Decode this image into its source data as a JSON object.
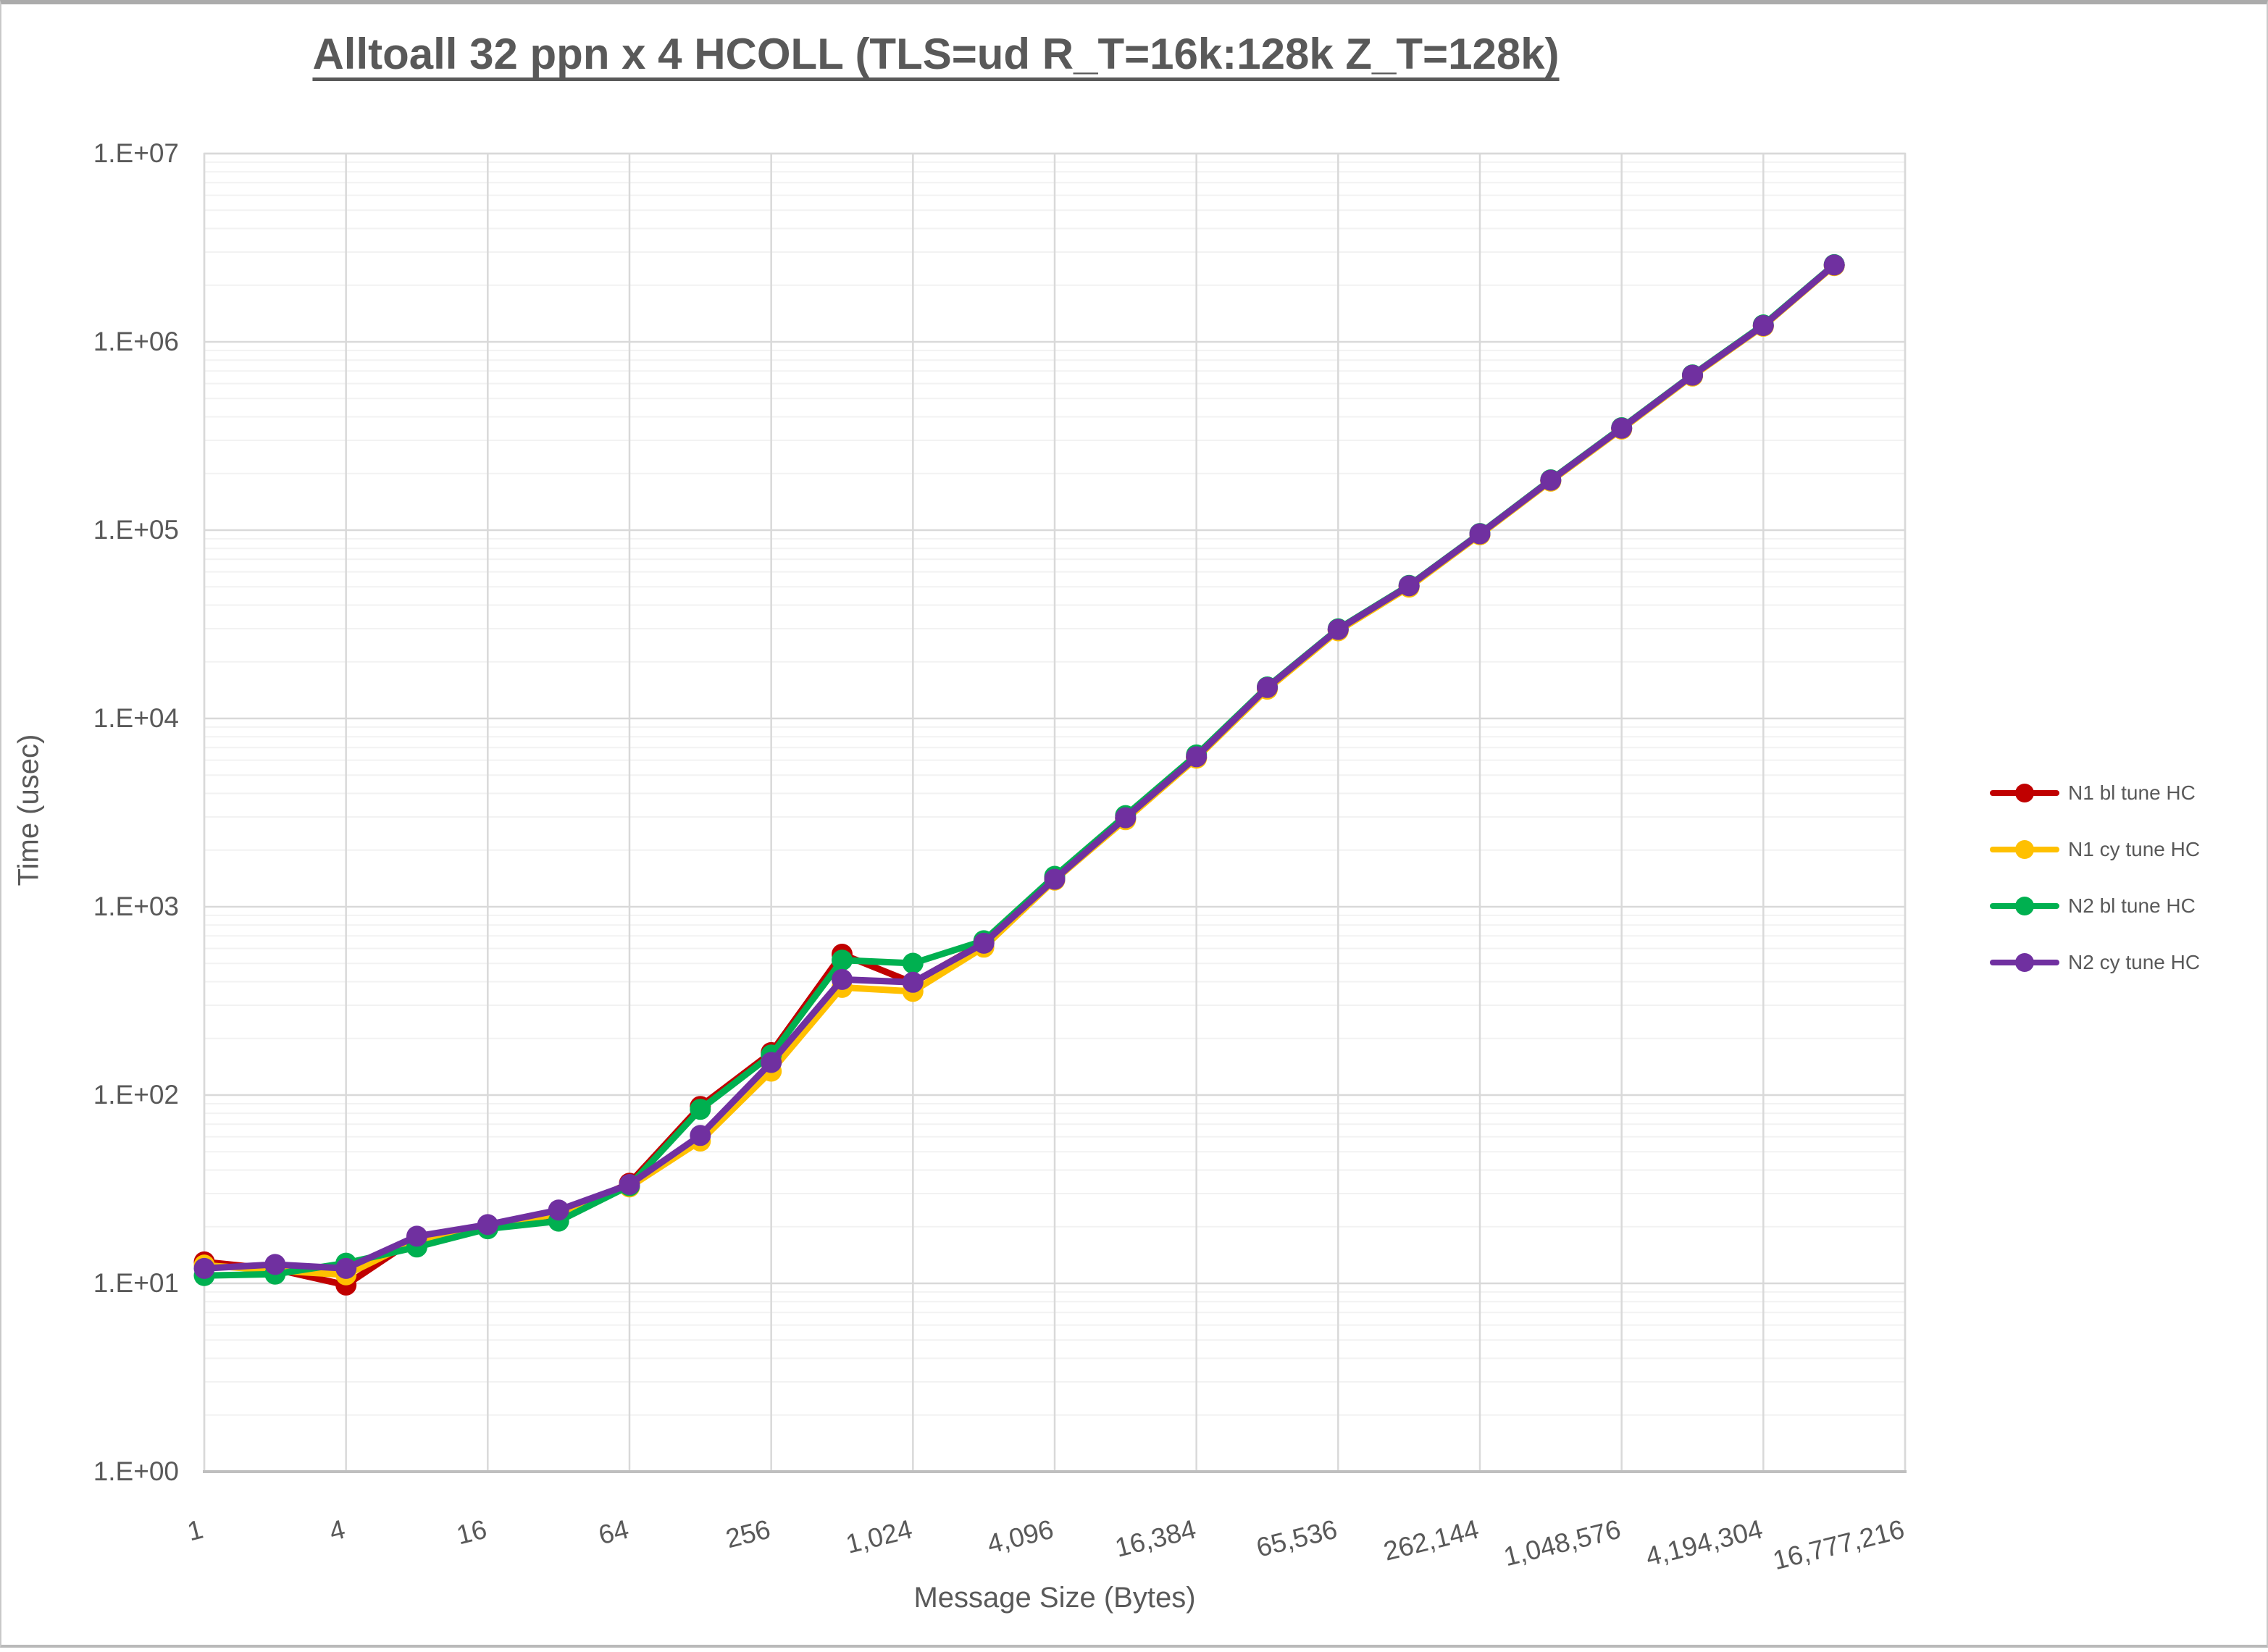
{
  "chart": {
    "title": "Alltoall 32 ppn x 4 HCOLL (TLS=ud R_T=16k:128k Z_T=128k)",
    "x_axis_title": "Message Size (Bytes)",
    "y_axis_title": "Time (usec)"
  },
  "chart_data": {
    "type": "line",
    "title": "Alltoall 32 ppn x 4 HCOLL (TLS=ud R_T=16k:128k Z_T=128k)",
    "xlabel": "Message Size (Bytes)",
    "ylabel": "Time (usec)",
    "x_scale": "log2",
    "y_scale": "log10",
    "xlim": [
      1,
      16777216
    ],
    "ylim": [
      1,
      10000000
    ],
    "grid": "major-and-minor",
    "legend_position": "right",
    "x_tick_labels": [
      "1",
      "4",
      "16",
      "64",
      "256",
      "1,024",
      "4,096",
      "16,384",
      "65,536",
      "262,144",
      "1,048,576",
      "4,194,304",
      "16,777,216"
    ],
    "y_tick_labels": [
      "1.E+00",
      "1.E+01",
      "1.E+02",
      "1.E+03",
      "1.E+04",
      "1.E+05",
      "1.E+06",
      "1.E+07"
    ],
    "categories": [
      1,
      2,
      4,
      8,
      16,
      32,
      64,
      128,
      256,
      512,
      1024,
      2048,
      4096,
      8192,
      16384,
      32768,
      65536,
      131072,
      262144,
      524288,
      1048576,
      2097152,
      4194304,
      8388608
    ],
    "series": [
      {
        "name": "N1 bl tune HC",
        "color": "#C00000",
        "values": [
          13,
          11.9,
          9.8,
          17.5,
          20,
          23,
          34,
          87,
          168,
          560,
          395,
          645,
          1410,
          2950,
          6200,
          14500,
          29500,
          50300,
          95000,
          183000,
          346000,
          662000,
          1215000,
          2550000
        ]
      },
      {
        "name": "N1 cy tune HC",
        "color": "#FFC000",
        "values": [
          12.5,
          11.7,
          11.1,
          17,
          20,
          23.5,
          32.5,
          57,
          134,
          373,
          355,
          610,
          1385,
          2900,
          6150,
          14300,
          29200,
          49800,
          94500,
          182000,
          344000,
          658000,
          1210000,
          2540000
        ]
      },
      {
        "name": "N2 bl tune HC",
        "color": "#00B050",
        "values": [
          11,
          11.2,
          12.8,
          15.6,
          19.5,
          21.4,
          33,
          84,
          163,
          520,
          501,
          660,
          1450,
          3050,
          6400,
          14700,
          29900,
          50900,
          96000,
          185000,
          350000,
          668000,
          1230000,
          2570000
        ]
      },
      {
        "name": "N2 cy tune HC",
        "color": "#7030A0",
        "values": [
          12,
          12.6,
          12,
          17.8,
          20.5,
          24.5,
          33.5,
          61,
          149,
          411,
          397,
          640,
          1400,
          2970,
          6260,
          14600,
          29700,
          50600,
          95600,
          184000,
          348000,
          665000,
          1220000,
          2560000
        ]
      }
    ],
    "colors": {
      "major_gridline": "#D9D9D9",
      "minor_gridline": "#F2F2F2",
      "axis_line": "#BFBFBF",
      "text": "#595959"
    }
  }
}
